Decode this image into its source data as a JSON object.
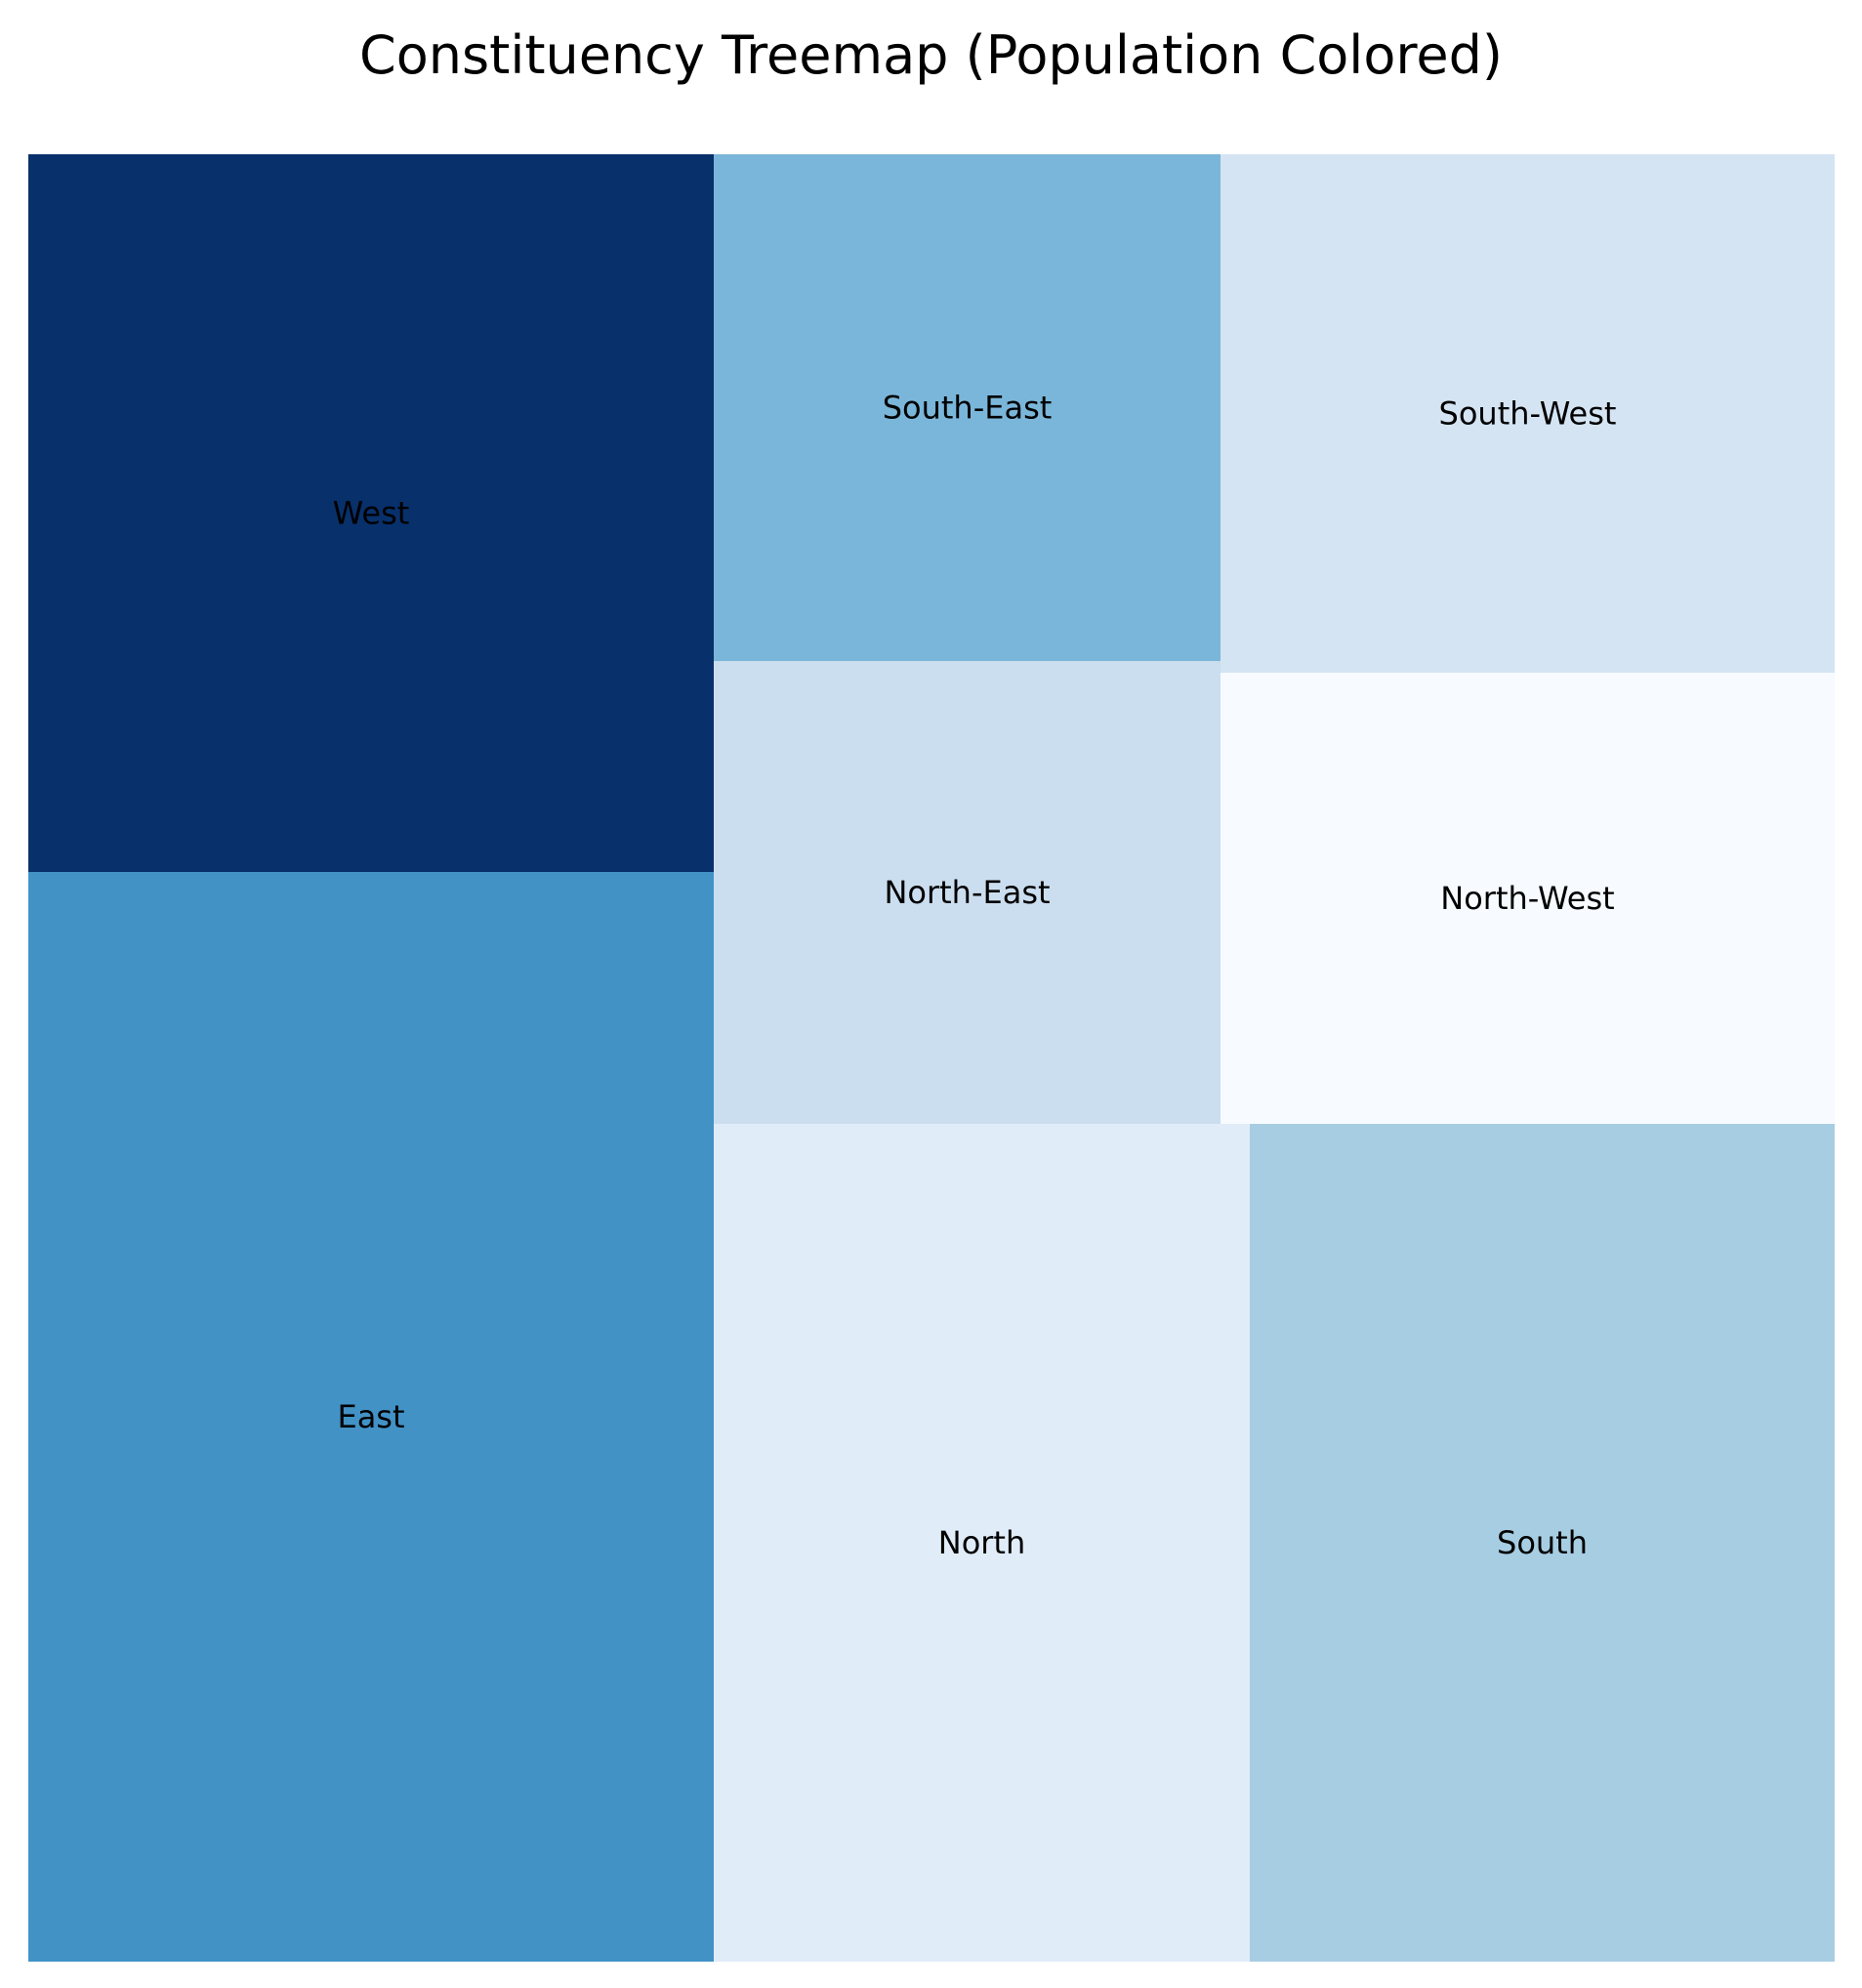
{
  "chart_data": {
    "type": "treemap",
    "title": "Constituency Treemap (Population Colored)",
    "colormap": "Blues",
    "tiles": [
      {
        "label": "West",
        "color": "#08306b"
      },
      {
        "label": "East",
        "color": "#4292c6"
      },
      {
        "label": "South-East",
        "color": "#7ab6d9"
      },
      {
        "label": "North-East",
        "color": "#cbdeef"
      },
      {
        "label": "North",
        "color": "#e0ecf8"
      },
      {
        "label": "South-West",
        "color": "#d4e4f3"
      },
      {
        "label": "North-West",
        "color": "#f7fbff"
      },
      {
        "label": "South",
        "color": "#a7cde2"
      }
    ]
  }
}
